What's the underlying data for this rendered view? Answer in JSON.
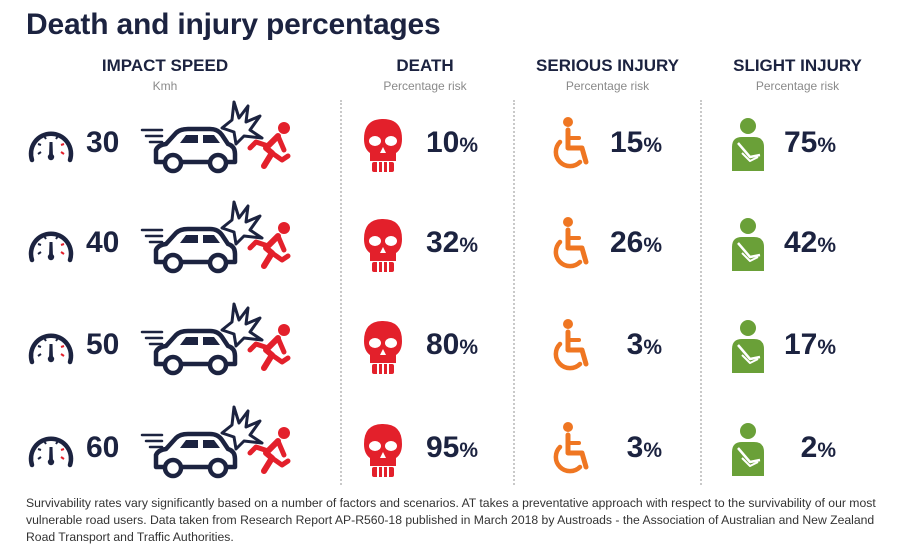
{
  "title": "Death and injury percentages",
  "columns": {
    "speed": {
      "label": "IMPACT SPEED",
      "sub": "Kmh"
    },
    "death": {
      "label": "DEATH",
      "sub": "Percentage risk"
    },
    "serious": {
      "label": "SERIOUS INJURY",
      "sub": "Percentage risk"
    },
    "slight": {
      "label": "SLIGHT INJURY",
      "sub": "Percentage risk"
    }
  },
  "percent_sign": "%",
  "colors": {
    "navy": "#1c2340",
    "red": "#e3202b",
    "orange": "#ef7622",
    "green": "#6aa038"
  },
  "icons": [
    "speedometer-icon",
    "car-crash-icon",
    "pedestrian-hit-icon",
    "skull-icon",
    "wheelchair-icon",
    "injured-person-icon"
  ],
  "chart_data": {
    "type": "table",
    "categories": [
      "30",
      "40",
      "50",
      "60"
    ],
    "series": [
      {
        "name": "DEATH",
        "values": [
          10,
          32,
          80,
          95
        ]
      },
      {
        "name": "SERIOUS INJURY",
        "values": [
          15,
          26,
          3,
          3
        ]
      },
      {
        "name": "SLIGHT INJURY",
        "values": [
          75,
          42,
          17,
          2
        ]
      }
    ]
  },
  "footnote": "Survivability rates vary significantly based on a number of factors and scenarios. AT takes a preventative approach with respect to the survivability of our most vulnerable road users. Data taken from Research Report AP-R560-18 published in March 2018 by Austroads - the Association of Australian and New Zealand Road Transport and Traffic Authorities."
}
